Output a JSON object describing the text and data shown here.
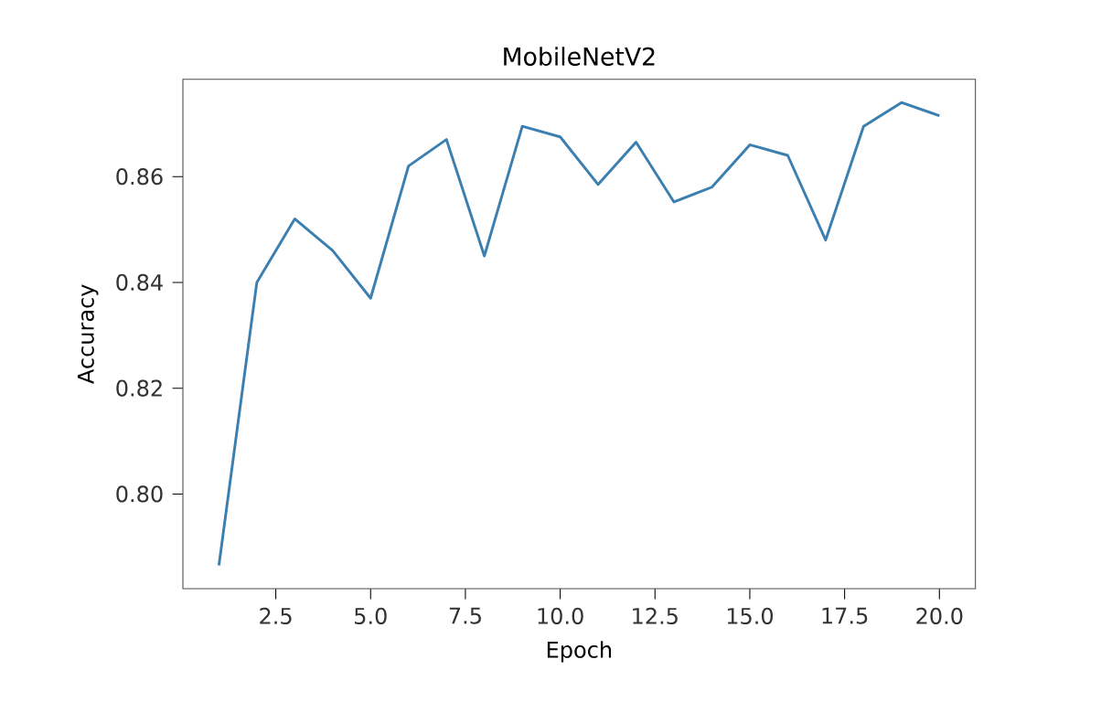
{
  "chart_data": {
    "type": "line",
    "title": "MobileNetV2",
    "xlabel": "Epoch",
    "ylabel": "Accuracy",
    "x": [
      1,
      2,
      3,
      4,
      5,
      6,
      7,
      8,
      9,
      10,
      11,
      12,
      13,
      14,
      15,
      16,
      17,
      18,
      19,
      20
    ],
    "series": [
      {
        "color": "#3a7fb0",
        "values": [
          0.7865,
          0.84,
          0.852,
          0.846,
          0.837,
          0.862,
          0.867,
          0.845,
          0.8695,
          0.8675,
          0.8585,
          0.8665,
          0.8552,
          0.858,
          0.866,
          0.864,
          0.848,
          0.8695,
          0.874,
          0.8715
        ]
      }
    ],
    "xlim": [
      0.05,
      20.95
    ],
    "ylim": [
      0.7821,
      0.8784
    ],
    "xticks": [
      {
        "value": 2.5,
        "label": "2.5"
      },
      {
        "value": 5,
        "label": "5.0"
      },
      {
        "value": 7.5,
        "label": "7.5"
      },
      {
        "value": 10,
        "label": "10.0"
      },
      {
        "value": 12.5,
        "label": "12.5"
      },
      {
        "value": 15,
        "label": "15.0"
      },
      {
        "value": 17.5,
        "label": "17.5"
      },
      {
        "value": 20,
        "label": "20.0"
      }
    ],
    "yticks": [
      {
        "value": 0.8,
        "label": "0.80"
      },
      {
        "value": 0.82,
        "label": "0.82"
      },
      {
        "value": 0.84,
        "label": "0.84"
      },
      {
        "value": 0.86,
        "label": "0.86"
      }
    ],
    "marker": "none",
    "line_style": "solid"
  }
}
